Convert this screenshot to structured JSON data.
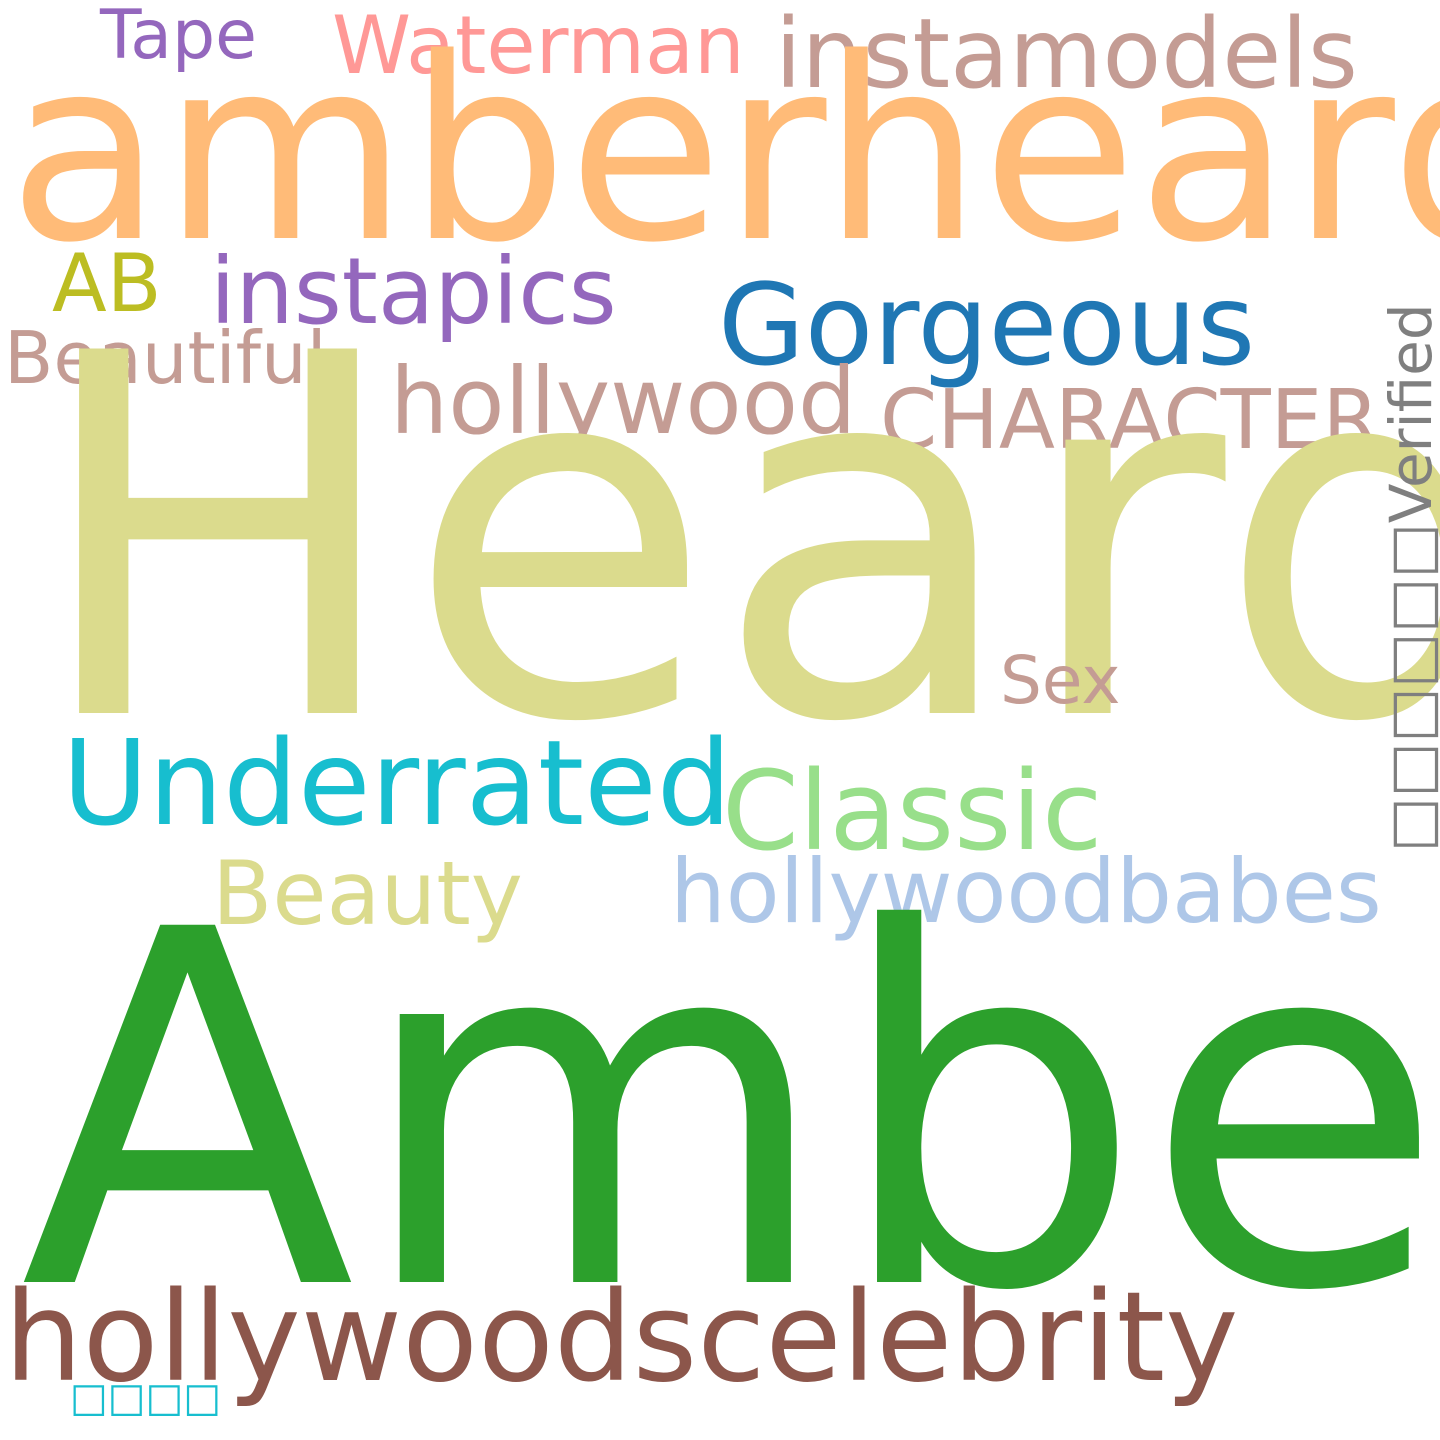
{
  "words": [
    {
      "key": "tape",
      "text": "Tape",
      "color": "#9467bd"
    },
    {
      "key": "waterman",
      "text": "Waterman",
      "color": "#ff9896"
    },
    {
      "key": "instamodels",
      "text": "instamodels",
      "color": "#c49c94"
    },
    {
      "key": "amberheard",
      "text": "amberheard",
      "color": "#ffbb78"
    },
    {
      "key": "ab",
      "text": "AB",
      "color": "#bcbd22"
    },
    {
      "key": "instapics",
      "text": "instapics",
      "color": "#9467bd"
    },
    {
      "key": "gorgeous",
      "text": "Gorgeous",
      "color": "#1f77b4"
    },
    {
      "key": "beautiful",
      "text": "Beautiful",
      "color": "#c49c94"
    },
    {
      "key": "hollywood",
      "text": "hollywood",
      "color": "#c49c94"
    },
    {
      "key": "character",
      "text": "CHARACTER",
      "color": "#c49c94"
    },
    {
      "key": "heard",
      "text": "Heard",
      "color": "#dbdb8d"
    },
    {
      "key": "verified",
      "text": "□□□□□□Verified",
      "color": "#7f7f7f"
    },
    {
      "key": "sex",
      "text": "Sex",
      "color": "#c49c94"
    },
    {
      "key": "underrated",
      "text": "Underrated",
      "color": "#17becf"
    },
    {
      "key": "classic",
      "text": "Classic",
      "color": "#98df8a"
    },
    {
      "key": "beauty",
      "text": "Beauty",
      "color": "#dbdb8d"
    },
    {
      "key": "hollywoodbabes",
      "text": "hollywoodbabes",
      "color": "#aec7e8"
    },
    {
      "key": "amber",
      "text": "Amber",
      "color": "#2ca02c"
    },
    {
      "key": "hollywoodcelebrity",
      "text": "hollywoodscelebrity",
      "color": "#8c564b"
    },
    {
      "key": "cjk",
      "text": "□□□□",
      "color": "#17becf"
    }
  ]
}
